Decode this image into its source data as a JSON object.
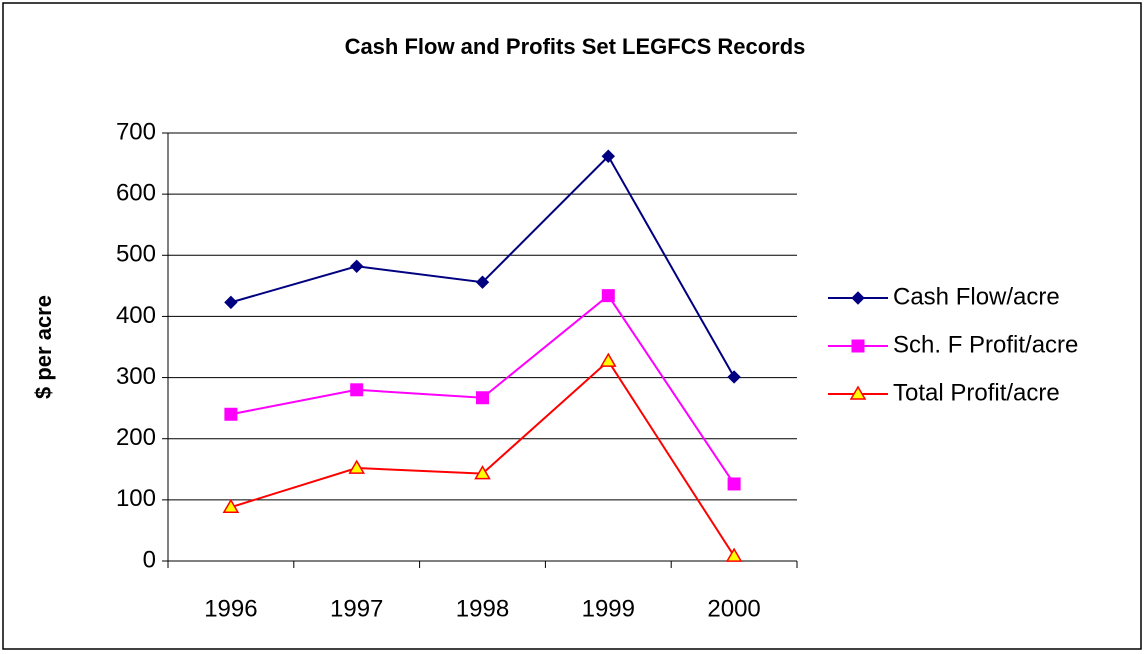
{
  "chart_data": {
    "type": "line",
    "title": "Cash Flow and Profits Set LEGFCS Records",
    "ylabel": "$ per acre",
    "categories": [
      "1996",
      "1997",
      "1998",
      "1999",
      "2000"
    ],
    "series": [
      {
        "name": "Cash Flow/acre",
        "color": "#000080",
        "marker": "diamond",
        "values": [
          423,
          482,
          456,
          662,
          301
        ]
      },
      {
        "name": "Sch. F Profit/acre",
        "color": "#ff00ff",
        "marker": "square",
        "values": [
          240,
          280,
          267,
          434,
          126
        ]
      },
      {
        "name": "Total Profit/acre",
        "color": "#ff0000",
        "marker": "triangle",
        "values": [
          88,
          152,
          143,
          327,
          8
        ]
      }
    ],
    "ylim": [
      0,
      700
    ],
    "yticks": [
      0,
      100,
      200,
      300,
      400,
      500,
      600,
      700
    ],
    "grid": true,
    "legend": "right"
  }
}
